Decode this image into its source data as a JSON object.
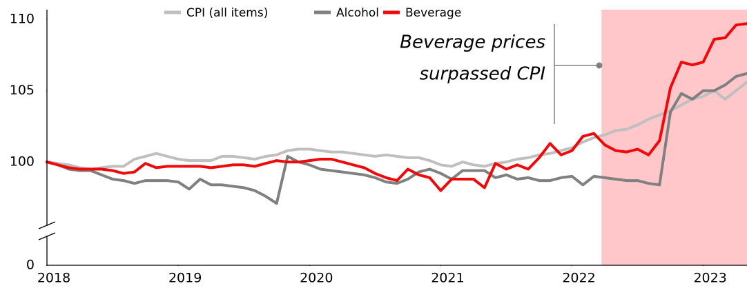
{
  "chart_data": {
    "type": "line",
    "x": [
      0,
      1,
      2,
      3,
      4,
      5,
      6,
      7,
      8,
      9,
      10,
      11,
      12,
      13,
      14,
      15,
      16,
      17,
      18,
      19,
      20,
      21,
      22,
      23,
      24,
      25,
      26,
      27,
      28,
      29,
      30,
      31,
      32,
      33,
      34,
      35,
      36,
      37,
      38,
      39,
      40,
      41,
      42,
      43,
      44,
      45,
      46,
      47,
      48,
      49,
      50,
      51,
      52,
      53,
      54,
      55,
      56,
      57,
      58,
      59,
      60,
      61,
      62,
      63,
      64
    ],
    "xlim": [
      0,
      64
    ],
    "xticks": [
      {
        "value": 0,
        "label": "2018"
      },
      {
        "value": 12,
        "label": "2019"
      },
      {
        "value": 24,
        "label": "2020"
      },
      {
        "value": 36,
        "label": "2021"
      },
      {
        "value": 48,
        "label": "2022"
      },
      {
        "value": 60,
        "label": "2023"
      }
    ],
    "ylim": [
      0,
      110
    ],
    "yticks": [
      0,
      100,
      105,
      110
    ],
    "y_break": [
      0,
      96
    ],
    "legend": "top",
    "highlight": {
      "xlim": [
        50.7,
        64
      ],
      "color": "#ffc7ca"
    },
    "annotation": [
      "Beverage prices",
      "surpassed CPI"
    ],
    "series": [
      {
        "name": "CPI (all items)",
        "color": "#bfbfbf",
        "values": [
          100,
          99.9,
          99.8,
          99.6,
          99.5,
          99.6,
          99.7,
          99.7,
          100.2,
          100.4,
          100.6,
          100.4,
          100.2,
          100.1,
          100.1,
          100.1,
          100.4,
          100.4,
          100.3,
          100.2,
          100.4,
          100.5,
          100.8,
          100.9,
          100.9,
          100.8,
          100.7,
          100.7,
          100.6,
          100.5,
          100.4,
          100.5,
          100.4,
          100.3,
          100.3,
          100.1,
          99.8,
          99.7,
          100.0,
          99.8,
          99.7,
          99.9,
          100.0,
          100.2,
          100.3,
          100.5,
          100.6,
          100.8,
          101.0,
          101.4,
          101.7,
          101.9,
          102.2,
          102.3,
          102.6,
          103.0,
          103.3,
          103.6,
          104.0,
          104.4,
          104.6,
          105.0,
          104.4,
          105.0,
          105.6
        ]
      },
      {
        "name": "Alcohol",
        "color": "#808080",
        "values": [
          100,
          99.8,
          99.5,
          99.4,
          99.4,
          99.1,
          98.8,
          98.7,
          98.5,
          98.7,
          98.7,
          98.7,
          98.6,
          98.1,
          98.8,
          98.4,
          98.4,
          98.3,
          98.2,
          98.0,
          97.6,
          97.1,
          100.4,
          100.0,
          99.8,
          99.5,
          99.4,
          99.3,
          99.2,
          99.1,
          98.9,
          98.6,
          98.5,
          98.8,
          99.3,
          99.5,
          99.2,
          98.8,
          99.4,
          99.4,
          99.4,
          98.9,
          99.1,
          98.8,
          98.9,
          98.7,
          98.7,
          98.9,
          99.0,
          98.4,
          99.0,
          98.9,
          98.8,
          98.7,
          98.7,
          98.5,
          98.4,
          103.5,
          104.8,
          104.4,
          105.0,
          105.0,
          105.4,
          106.0,
          106.2
        ]
      },
      {
        "name": "Beverage",
        "color": "#ee0a0a",
        "values": [
          100,
          99.8,
          99.6,
          99.5,
          99.5,
          99.5,
          99.4,
          99.2,
          99.3,
          99.9,
          99.6,
          99.7,
          99.7,
          99.7,
          99.7,
          99.6,
          99.7,
          99.8,
          99.8,
          99.7,
          99.9,
          100.1,
          100.0,
          100.0,
          100.1,
          100.2,
          100.2,
          100.0,
          99.8,
          99.6,
          99.2,
          98.9,
          98.7,
          99.5,
          99.1,
          98.9,
          98.0,
          98.8,
          98.8,
          98.8,
          98.2,
          99.9,
          99.5,
          99.8,
          99.5,
          100.3,
          101.3,
          100.5,
          100.8,
          101.8,
          102.0,
          101.2,
          100.8,
          100.7,
          100.9,
          100.5,
          101.5,
          105.2,
          107.0,
          106.8,
          107.0,
          108.6,
          108.7,
          109.6,
          109.7
        ]
      }
    ]
  }
}
